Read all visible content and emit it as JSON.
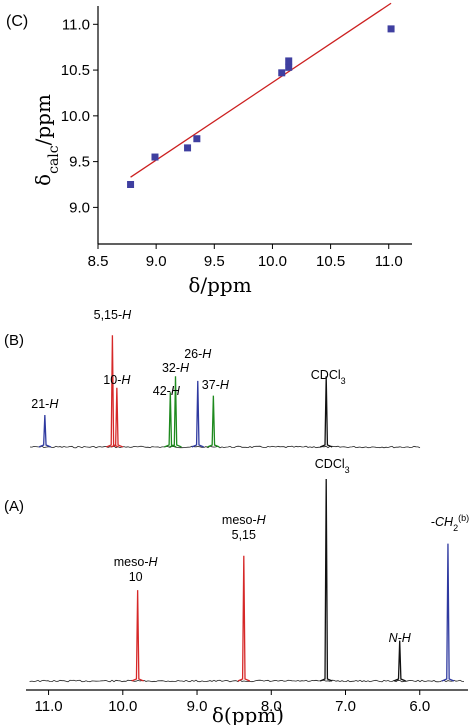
{
  "chart_data": [
    {
      "panel": "(C)",
      "type": "scatter",
      "xlabel": "δ/ppm",
      "ylabel": "δcalc/ppm",
      "ylabel_main": "δ",
      "ylabel_sub": "calc",
      "ylabel_unit": "/ppm",
      "xlim": [
        8.5,
        11.2
      ],
      "ylim": [
        8.6,
        11.2
      ],
      "xticks": [
        "8.5",
        "9.0",
        "9.5",
        "10.0",
        "10.5",
        "11.0"
      ],
      "yticks": [
        "9.0",
        "9.5",
        "10.0",
        "10.5",
        "11.0"
      ],
      "grid": false,
      "series": [
        {
          "x": [
            8.78,
            8.99,
            9.27,
            9.35,
            10.08,
            10.14,
            10.14,
            11.02
          ],
          "y": [
            9.25,
            9.55,
            9.65,
            9.75,
            10.47,
            10.53,
            10.6,
            10.95
          ],
          "color": "#3f3fa0"
        }
      ],
      "fit_line": {
        "x": [
          8.78,
          11.02
        ],
        "y": [
          9.33,
          11.23
        ],
        "color": "#cc2020"
      }
    },
    {
      "panel": "(B)",
      "type": "line",
      "xlim": [
        11.25,
        5.35
      ],
      "baseline_color": "#222222",
      "peaks": [
        {
          "label_main": "21-",
          "label_italic": "H",
          "ppm": 11.05,
          "height": 0.28,
          "color": "#2f3aa0"
        },
        {
          "label_main": "5,15-",
          "label_italic": "H",
          "ppm": 10.14,
          "height": 0.98,
          "color": "#d62828"
        },
        {
          "label_main": "10-",
          "label_italic": "H",
          "ppm": 10.08,
          "height": 0.52,
          "color": "#d62828"
        },
        {
          "label_main": "42-",
          "label_italic": "H",
          "ppm": 9.36,
          "height": 0.48,
          "color": "#1e8a1e"
        },
        {
          "label_main": "32-",
          "label_italic": "H",
          "ppm": 9.29,
          "height": 0.62,
          "color": "#1e8a1e"
        },
        {
          "label_main": "26-",
          "label_italic": "H",
          "ppm": 8.99,
          "height": 0.58,
          "color": "#2f3aa0"
        },
        {
          "label_main": "37-",
          "label_italic": "H",
          "ppm": 8.78,
          "height": 0.45,
          "color": "#1e8a1e"
        },
        {
          "label_main": "CDCl",
          "label_sub": "3",
          "ppm": 7.26,
          "height": 0.62,
          "color": "#111111"
        }
      ]
    },
    {
      "panel": "(A)",
      "type": "line",
      "xlabel": "δ(ppm)",
      "xlim": [
        11.25,
        5.35
      ],
      "xticks": [
        "11.0",
        "10.0",
        "9.0",
        "8.0",
        "7.0",
        "6.0"
      ],
      "baseline_color": "#222222",
      "peaks": [
        {
          "label_line1": "meso-",
          "label_line1_italic": "H",
          "label_line2": "10",
          "ppm": 9.8,
          "height": 0.45,
          "color": "#d62828"
        },
        {
          "label_line1": "meso-",
          "label_line1_italic": "H",
          "label_line2": "5,15",
          "ppm": 8.37,
          "height": 0.62,
          "color": "#d62828"
        },
        {
          "label_line1": "CDCl",
          "label_line1_sub": "3",
          "ppm": 7.26,
          "height": 1.0,
          "color": "#111111"
        },
        {
          "label_line1": "",
          "label_line1_italic": "N-H",
          "ppm": 6.27,
          "height": 0.2,
          "color": "#111111"
        },
        {
          "label_line1": "-",
          "label_line1_italic": "CH",
          "label_line1_sub": "2",
          "label_line1_tail": "(b)",
          "ppm": 5.62,
          "height": 0.68,
          "color": "#2f3aa0"
        }
      ]
    }
  ]
}
